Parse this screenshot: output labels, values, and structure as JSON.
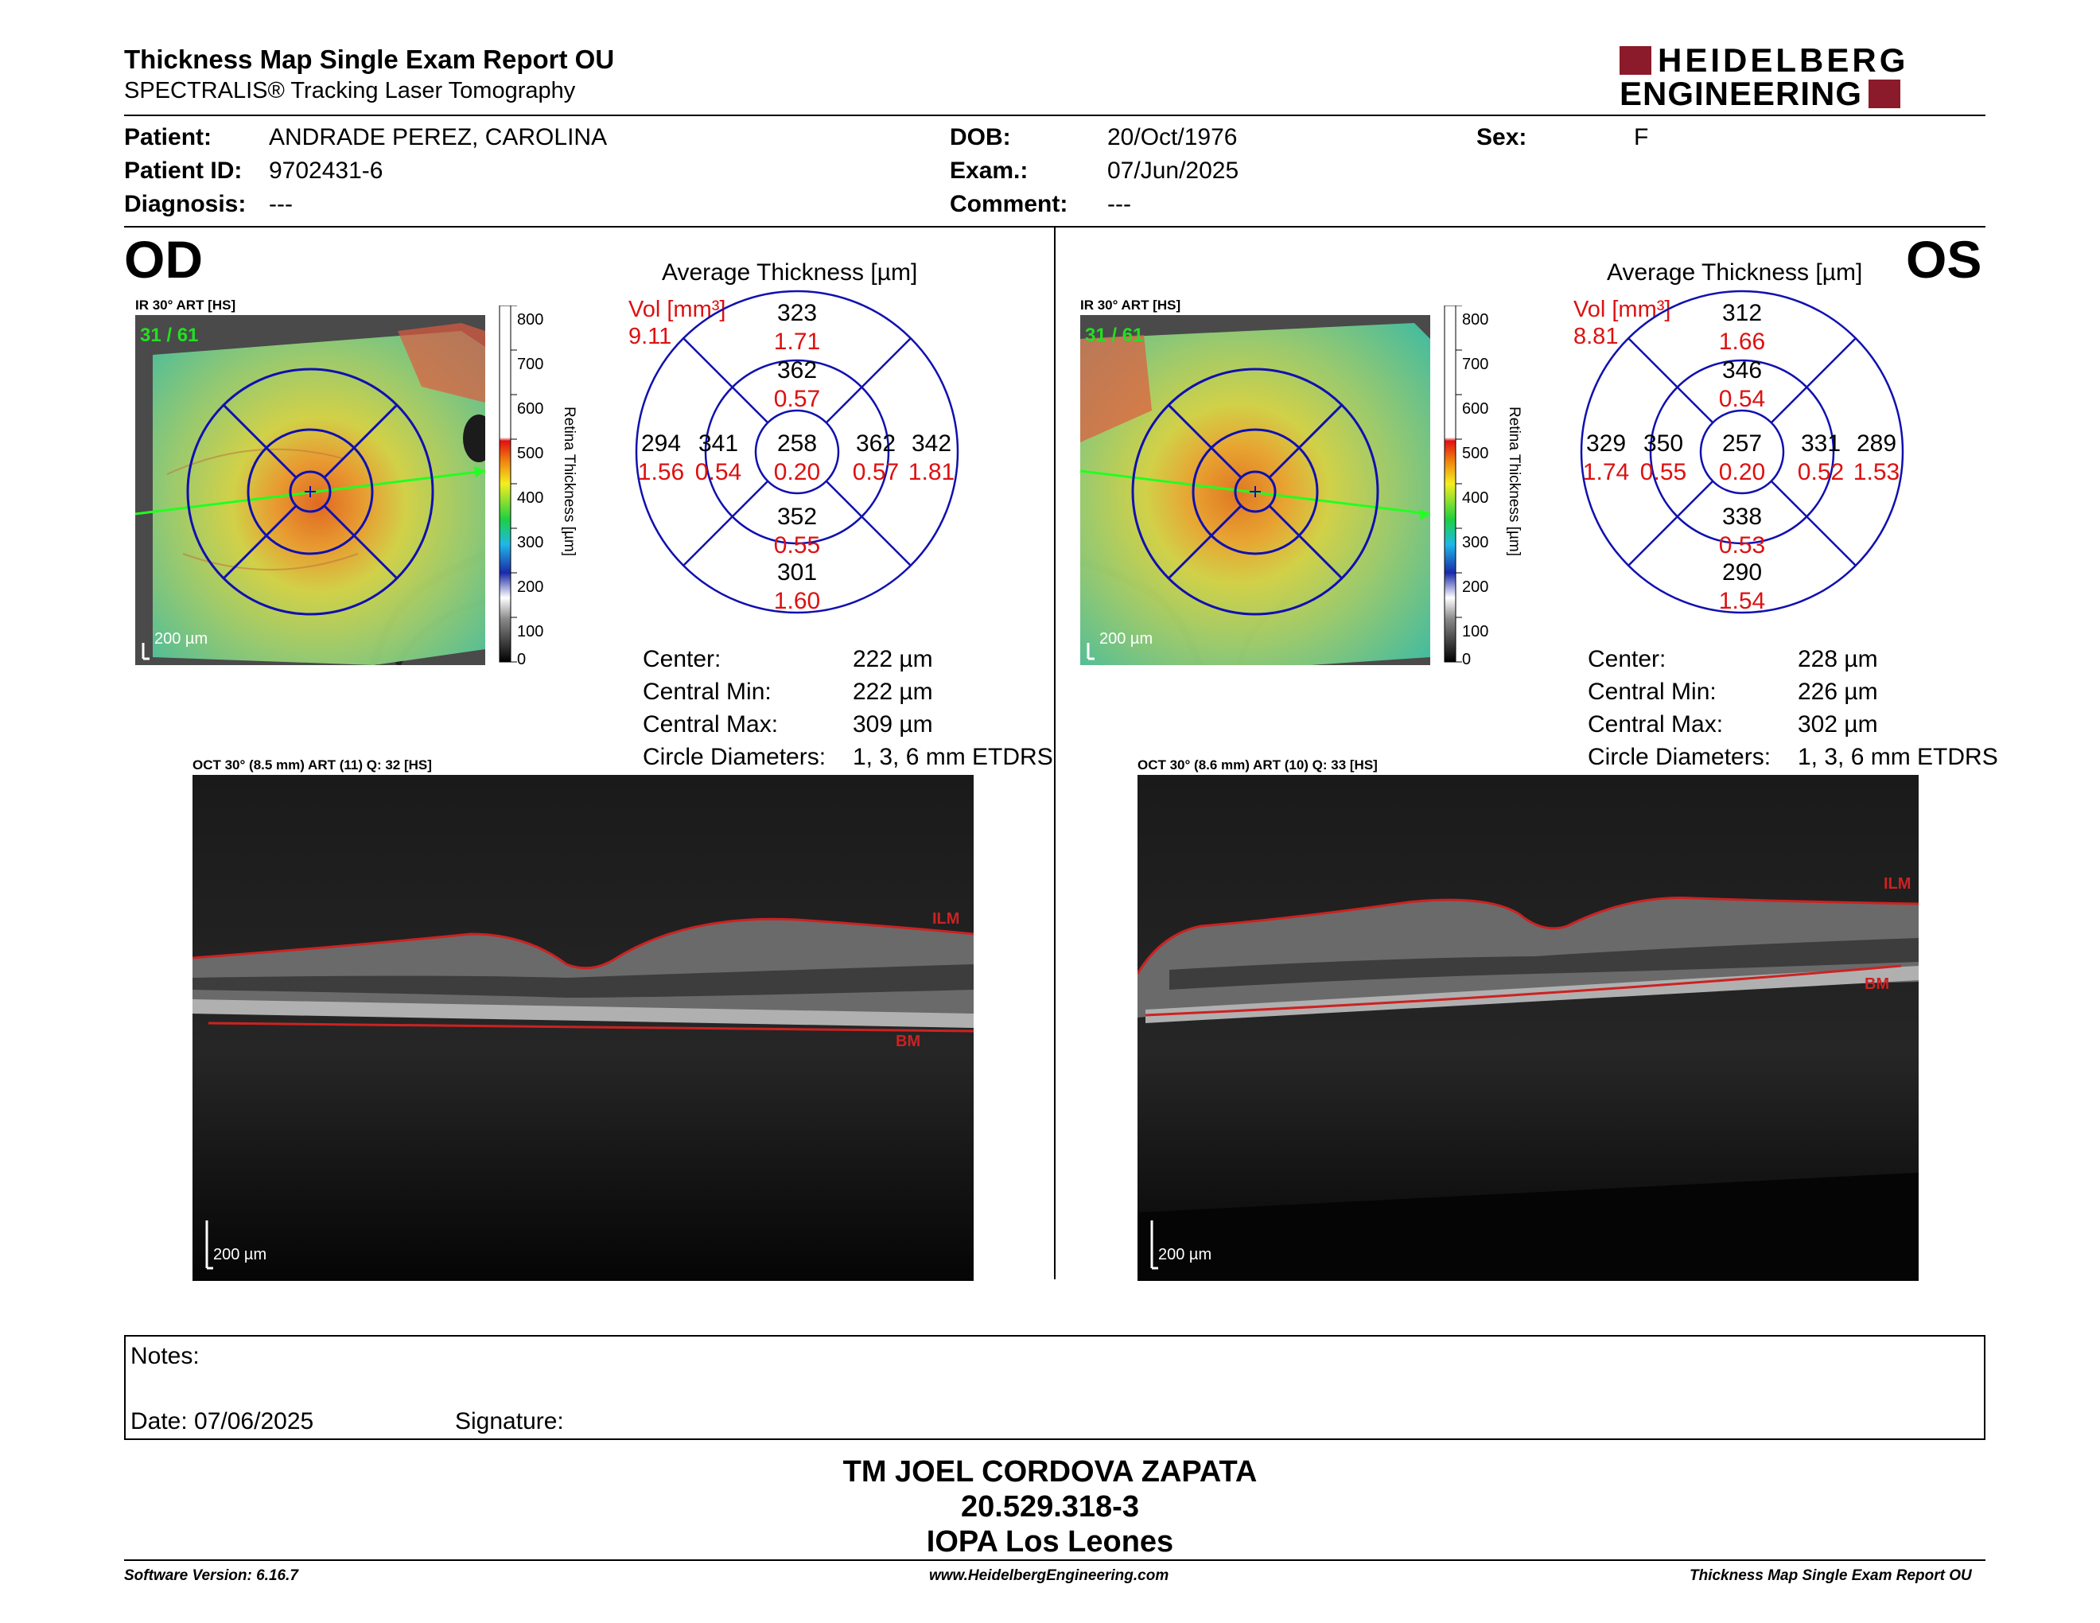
{
  "header": {
    "title": "Thickness Map Single Exam Report OU",
    "subtitle": "SPECTRALIS® Tracking Laser Tomography",
    "logo_line1": "HEIDELBERG",
    "logo_line2": "ENGINEERING"
  },
  "patient": {
    "patient_label": "Patient:",
    "patient_value": "ANDRADE PEREZ, CAROLINA",
    "id_label": "Patient ID:",
    "id_value": "9702431-6",
    "diagnosis_label": "Diagnosis:",
    "diagnosis_value": "---",
    "dob_label": "DOB:",
    "dob_value": "20/Oct/1976",
    "exam_label": "Exam.:",
    "exam_value": "07/Jun/2025",
    "comment_label": "Comment:",
    "comment_value": "---",
    "sex_label": "Sex:",
    "sex_value": "F"
  },
  "scale": {
    "ticks": [
      "800",
      "700",
      "600",
      "500",
      "400",
      "300",
      "200",
      "100",
      "0"
    ],
    "label": "Retina Thickness [µm]"
  },
  "od": {
    "eye": "OD",
    "ir_label": "IR 30° ART [HS]",
    "frame": "31 / 61",
    "scale_bar": "200 µm",
    "avg_title": "Average Thickness [µm]",
    "vol_label": "Vol [mm³]",
    "vol_value": "9.11",
    "grid": {
      "outer_top": [
        "323",
        "1.71"
      ],
      "inner_top": [
        "362",
        "0.57"
      ],
      "outer_left": [
        "294",
        "1.56"
      ],
      "inner_left": [
        "341",
        "0.54"
      ],
      "center": [
        "258",
        "0.20"
      ],
      "inner_right": [
        "362",
        "0.57"
      ],
      "outer_right": [
        "342",
        "1.81"
      ],
      "inner_bottom": [
        "352",
        "0.55"
      ],
      "outer_bottom": [
        "301",
        "1.60"
      ]
    },
    "stats": [
      {
        "label": "Center:",
        "value": "222 µm"
      },
      {
        "label": "Central Min:",
        "value": "222 µm"
      },
      {
        "label": "Central Max:",
        "value": "309 µm"
      },
      {
        "label": "Circle Diameters:",
        "value": "1, 3, 6 mm ETDRS"
      }
    ],
    "oct_label": "OCT 30° (8.5 mm) ART (11) Q: 32 [HS]",
    "oct_scale": "200 µm",
    "ilm": "ILM",
    "bm": "BM"
  },
  "os": {
    "eye": "OS",
    "ir_label": "IR 30° ART [HS]",
    "frame": "31 / 61",
    "scale_bar": "200 µm",
    "avg_title": "Average Thickness [µm]",
    "vol_label": "Vol [mm³]",
    "vol_value": "8.81",
    "grid": {
      "outer_top": [
        "312",
        "1.66"
      ],
      "inner_top": [
        "346",
        "0.54"
      ],
      "outer_left": [
        "329",
        "1.74"
      ],
      "inner_left": [
        "350",
        "0.55"
      ],
      "center": [
        "257",
        "0.20"
      ],
      "inner_right": [
        "331",
        "0.52"
      ],
      "outer_right": [
        "289",
        "1.53"
      ],
      "inner_bottom": [
        "338",
        "0.53"
      ],
      "outer_bottom": [
        "290",
        "1.54"
      ]
    },
    "stats": [
      {
        "label": "Center:",
        "value": "228 µm"
      },
      {
        "label": "Central Min:",
        "value": "226 µm"
      },
      {
        "label": "Central Max:",
        "value": "302 µm"
      },
      {
        "label": "Circle Diameters:",
        "value": "1, 3, 6 mm ETDRS"
      }
    ],
    "oct_label": "OCT 30° (8.6 mm) ART (10) Q: 33 [HS]",
    "oct_scale": "200 µm",
    "ilm": "ILM",
    "bm": "BM"
  },
  "notes": {
    "notes_label": "Notes:",
    "date_label": "Date: 07/06/2025",
    "signature_label": "Signature:"
  },
  "signer": {
    "name": "TM JOEL CORDOVA ZAPATA",
    "rut": "20.529.318-3",
    "place": "IOPA Los Leones"
  },
  "footer": {
    "software": "Software Version: 6.16.7",
    "website": "www.HeidelbergEngineering.com",
    "report": "Thickness Map Single Exam Report OU"
  }
}
